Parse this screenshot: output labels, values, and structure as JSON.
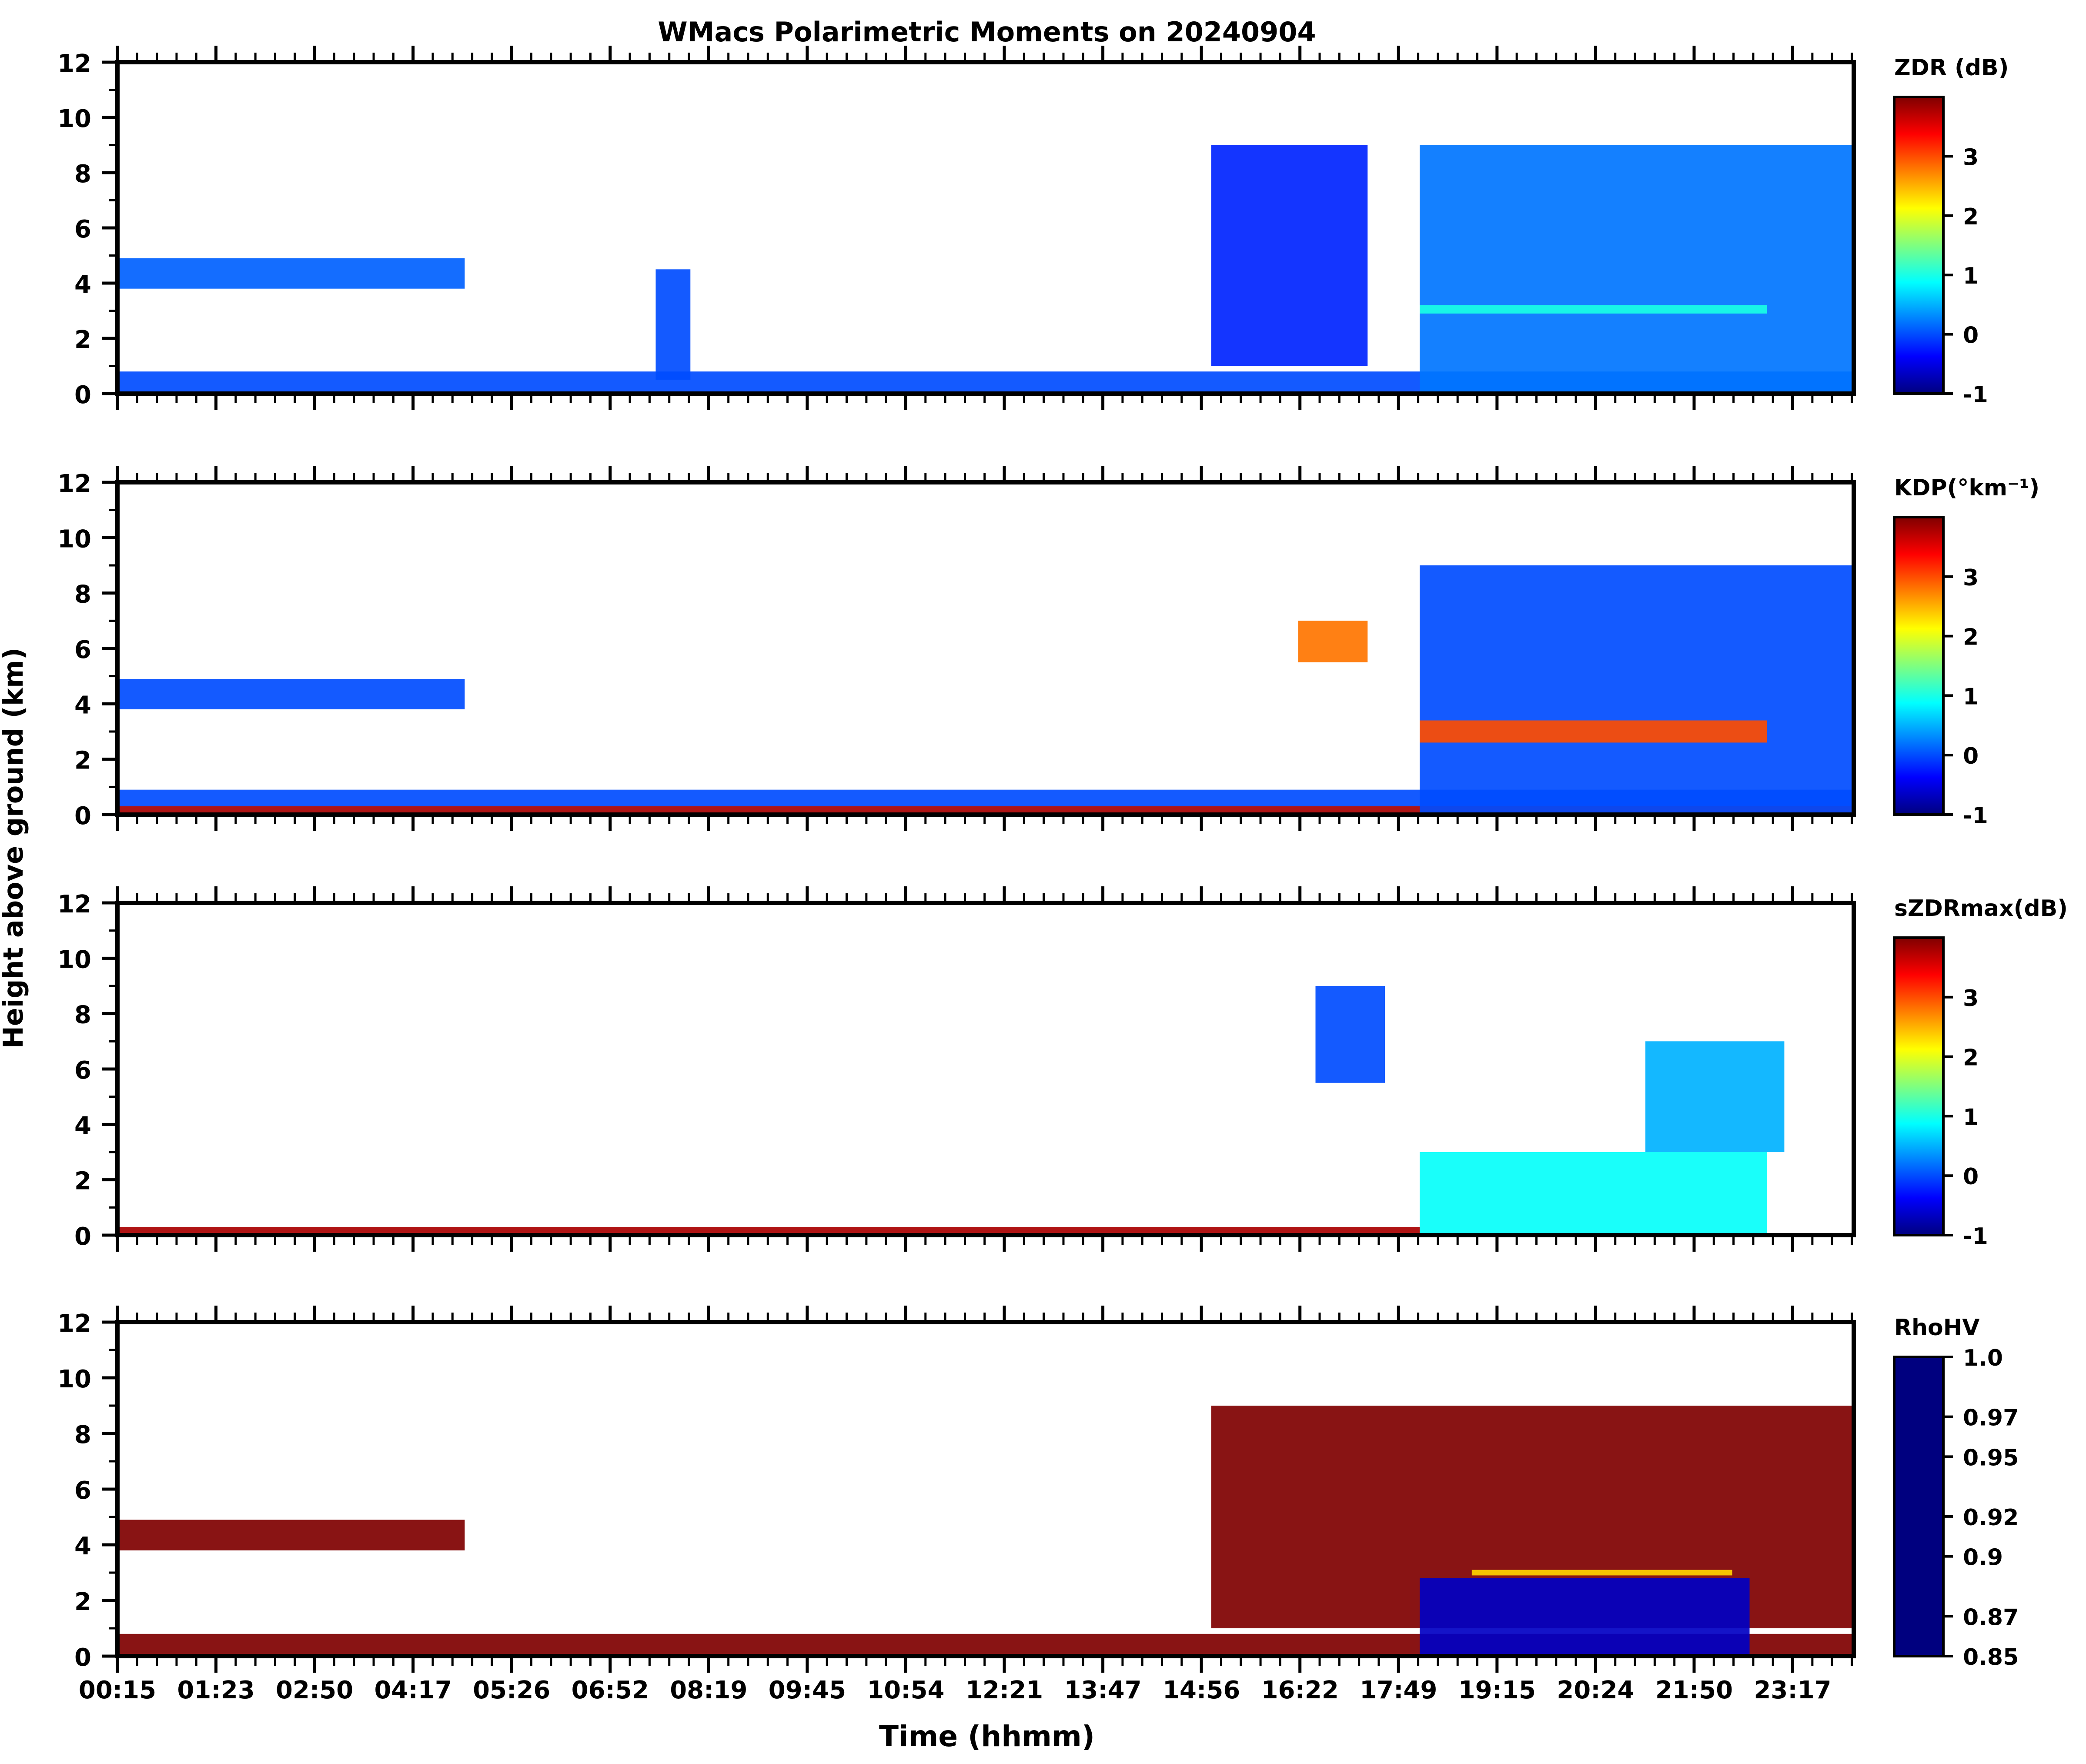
{
  "figure": {
    "title": "WMacs Polarimetric Moments on 20240904",
    "xlabel": "Time (hhmm)",
    "ylabel": "Height above ground (km)"
  },
  "colors": {
    "jet": [
      "#00007f",
      "#0000ff",
      "#007fff",
      "#00ffff",
      "#7fff7f",
      "#ffff00",
      "#ff7f00",
      "#ff0000",
      "#7f0000"
    ],
    "axis": "#000000"
  },
  "chart_data": [
    {
      "type": "heatmap",
      "panel": "ZDR",
      "colorbar_label": "ZDR (dB)",
      "clim": [
        -1,
        4
      ],
      "colorbar_ticks": [
        "3",
        "2",
        "1",
        "0",
        "-1"
      ],
      "colorbar_tick_values": [
        3,
        2,
        1,
        0,
        -1
      ],
      "colormap": "jet",
      "ylim": [
        0,
        12
      ],
      "yticks": [
        "0",
        "2",
        "4",
        "6",
        "8",
        "10",
        "12"
      ],
      "xticks": [
        "00:15",
        "01:23",
        "02:50",
        "04:17",
        "05:26",
        "06:52",
        "08:19",
        "09:45",
        "10:54",
        "12:21",
        "13:47",
        "14:56",
        "16:22",
        "17:49",
        "19:15",
        "20:24",
        "21:50",
        "23:17"
      ],
      "echo_regions": [
        {
          "t": [
            0.0,
            1.0
          ],
          "h": [
            0.0,
            0.8
          ],
          "value": 0.0
        },
        {
          "t": [
            0.0,
            0.2
          ],
          "h": [
            3.8,
            4.9
          ],
          "value": 0.1
        },
        {
          "t": [
            0.31,
            0.33
          ],
          "h": [
            0.5,
            4.5
          ],
          "value": 0.0
        },
        {
          "t": [
            0.63,
            0.72
          ],
          "h": [
            1.0,
            9.0
          ],
          "value": -0.2
        },
        {
          "t": [
            0.75,
            1.0
          ],
          "h": [
            0.0,
            9.0
          ],
          "value": 0.2
        },
        {
          "t": [
            0.75,
            0.95
          ],
          "h": [
            2.9,
            3.2
          ],
          "value": 1.0
        }
      ]
    },
    {
      "type": "heatmap",
      "panel": "KDP",
      "colorbar_label": "KDP(°km⁻¹)",
      "clim": [
        -1,
        4
      ],
      "colorbar_ticks": [
        "3",
        "2",
        "1",
        "0",
        "-1"
      ],
      "colorbar_tick_values": [
        3,
        2,
        1,
        0,
        -1
      ],
      "colormap": "jet",
      "ylim": [
        0,
        12
      ],
      "yticks": [
        "0",
        "2",
        "4",
        "6",
        "8",
        "10",
        "12"
      ],
      "xticks": [
        "00:15",
        "01:23",
        "02:50",
        "04:17",
        "05:26",
        "06:52",
        "08:19",
        "09:45",
        "10:54",
        "12:21",
        "13:47",
        "14:56",
        "16:22",
        "17:49",
        "19:15",
        "20:24",
        "21:50",
        "23:17"
      ],
      "echo_regions": [
        {
          "t": [
            0.0,
            1.0
          ],
          "h": [
            0.0,
            0.3
          ],
          "value": 3.8
        },
        {
          "t": [
            0.0,
            1.0
          ],
          "h": [
            0.3,
            0.9
          ],
          "value": 0.0
        },
        {
          "t": [
            0.0,
            0.2
          ],
          "h": [
            3.8,
            4.9
          ],
          "value": 0.0
        },
        {
          "t": [
            0.68,
            0.72
          ],
          "h": [
            5.5,
            7.0
          ],
          "value": 2.8
        },
        {
          "t": [
            0.75,
            1.0
          ],
          "h": [
            0.0,
            9.0
          ],
          "value": 0.0
        },
        {
          "t": [
            0.75,
            0.95
          ],
          "h": [
            2.6,
            3.4
          ],
          "value": 3.0
        }
      ]
    },
    {
      "type": "heatmap",
      "panel": "sZDRmax",
      "colorbar_label": "sZDRmax(dB)",
      "clim": [
        -1,
        4
      ],
      "colorbar_ticks": [
        "3",
        "2",
        "1",
        "0",
        "-1"
      ],
      "colorbar_tick_values": [
        3,
        2,
        1,
        0,
        -1
      ],
      "colormap": "jet",
      "ylim": [
        0,
        12
      ],
      "yticks": [
        "0",
        "2",
        "4",
        "6",
        "8",
        "10",
        "12"
      ],
      "xticks": [
        "00:15",
        "01:23",
        "02:50",
        "04:17",
        "05:26",
        "06:52",
        "08:19",
        "09:45",
        "10:54",
        "12:21",
        "13:47",
        "14:56",
        "16:22",
        "17:49",
        "19:15",
        "20:24",
        "21:50",
        "23:17"
      ],
      "echo_regions": [
        {
          "t": [
            0.0,
            0.75
          ],
          "h": [
            0.0,
            0.3
          ],
          "value": 3.8
        },
        {
          "t": [
            0.69,
            0.73
          ],
          "h": [
            5.5,
            9.0
          ],
          "value": 0.0
        },
        {
          "t": [
            0.75,
            0.95
          ],
          "h": [
            0.0,
            3.0
          ],
          "value": 0.9
        },
        {
          "t": [
            0.88,
            0.96
          ],
          "h": [
            3.0,
            7.0
          ],
          "value": 0.5
        }
      ]
    },
    {
      "type": "heatmap",
      "panel": "RhoHV",
      "colorbar_label": "RhoHV",
      "clim": [
        0.85,
        1.0
      ],
      "colorbar_ticks": [
        "1.0",
        "0.97",
        "0.95",
        "0.92",
        "0.9",
        "0.87",
        "0.85"
      ],
      "colorbar_tick_values": [
        1.0,
        0.97,
        0.95,
        0.92,
        0.9,
        0.87,
        0.85
      ],
      "colormap": "jet_r",
      "ylim": [
        0,
        12
      ],
      "yticks": [
        "0",
        "2",
        "4",
        "6",
        "8",
        "10",
        "12"
      ],
      "xticks": [
        "00:15",
        "01:23",
        "02:50",
        "04:17",
        "05:26",
        "06:52",
        "08:19",
        "09:45",
        "10:54",
        "12:21",
        "13:47",
        "14:56",
        "16:22",
        "17:49",
        "19:15",
        "20:24",
        "21:50",
        "23:17"
      ],
      "echo_regions": [
        {
          "t": [
            0.0,
            1.0
          ],
          "h": [
            0.0,
            0.8
          ],
          "value": 0.85
        },
        {
          "t": [
            0.0,
            0.2
          ],
          "h": [
            3.8,
            4.9
          ],
          "value": 0.85
        },
        {
          "t": [
            0.63,
            1.0
          ],
          "h": [
            1.0,
            9.0
          ],
          "value": 0.85
        },
        {
          "t": [
            0.75,
            0.94
          ],
          "h": [
            0.0,
            2.8
          ],
          "value": 0.99
        },
        {
          "t": [
            0.78,
            0.93
          ],
          "h": [
            2.9,
            3.1
          ],
          "value": 0.9
        }
      ]
    }
  ]
}
